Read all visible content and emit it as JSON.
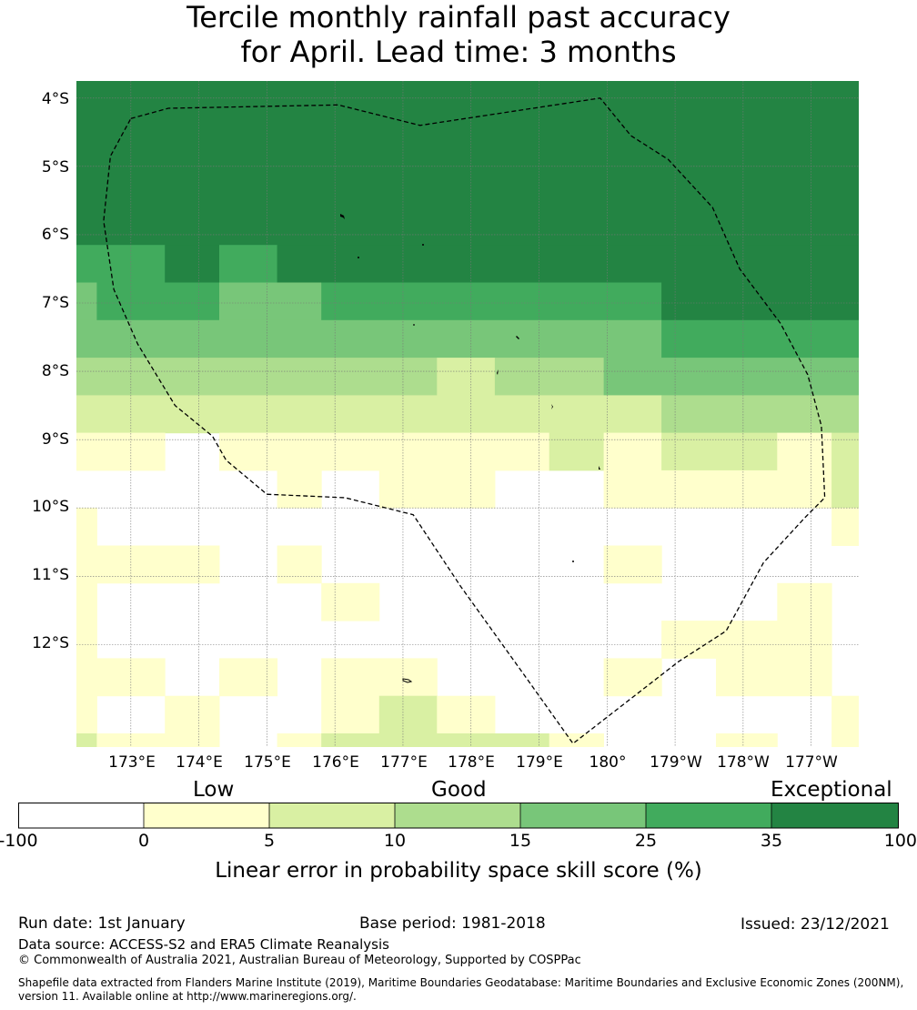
{
  "title": {
    "line1": "Tercile monthly rainfall past accuracy",
    "line2": "for April. Lead time: 3 months"
  },
  "map": {
    "lat_labels": [
      "4°S",
      "5°S",
      "6°S",
      "7°S",
      "8°S",
      "9°S",
      "10°S",
      "11°S",
      "12°S"
    ],
    "lon_labels": [
      "173°E",
      "174°E",
      "175°E",
      "176°E",
      "177°E",
      "178°E",
      "179°E",
      "180°",
      "179°W",
      "178°W",
      "177°W"
    ],
    "extent": {
      "lon_min": 172.2,
      "lon_max": 183.7,
      "lat_min": -13.5,
      "lat_max": -3.75
    },
    "grid_cell_size_deg": 0.5,
    "eez_boundary": [
      [
        173.0,
        -4.3
      ],
      [
        173.55,
        -4.15
      ],
      [
        176.05,
        -4.1
      ],
      [
        177.25,
        -4.4
      ],
      [
        179.9,
        -4.0
      ],
      [
        180.35,
        -4.55
      ],
      [
        180.9,
        -4.9
      ],
      [
        181.55,
        -5.6
      ],
      [
        181.95,
        -6.5
      ],
      [
        182.55,
        -7.3
      ],
      [
        182.95,
        -8.05
      ],
      [
        183.15,
        -8.8
      ],
      [
        183.2,
        -9.85
      ],
      [
        182.9,
        -10.15
      ],
      [
        182.3,
        -10.8
      ],
      [
        181.75,
        -11.8
      ],
      [
        181.05,
        -12.25
      ],
      [
        179.5,
        -13.45
      ],
      [
        178.75,
        -12.4
      ],
      [
        177.85,
        -11.15
      ],
      [
        177.15,
        -10.1
      ],
      [
        176.15,
        -9.85
      ],
      [
        175.0,
        -9.8
      ],
      [
        174.4,
        -9.3
      ],
      [
        174.2,
        -8.95
      ],
      [
        173.65,
        -8.5
      ],
      [
        173.1,
        -7.6
      ],
      [
        172.75,
        -6.8
      ],
      [
        172.6,
        -5.8
      ],
      [
        172.7,
        -4.85
      ],
      [
        173.0,
        -4.3
      ]
    ],
    "cells": [
      {
        "lat": -3.75,
        "lat2": -6.15,
        "lon": 172.2,
        "lon2": 183.7,
        "category": 6
      },
      {
        "lat": -6.15,
        "lat2": -6.7,
        "lon": 172.2,
        "lon2": 173.5,
        "category": 5
      },
      {
        "lat": -6.15,
        "lat2": -6.7,
        "lon": 173.5,
        "lon2": 174.3,
        "category": 6
      },
      {
        "lat": -6.15,
        "lat2": -6.7,
        "lon": 174.3,
        "lon2": 175.15,
        "category": 5
      },
      {
        "lat": -6.15,
        "lat2": -6.7,
        "lon": 175.15,
        "lon2": 183.7,
        "category": 6
      },
      {
        "lat": -6.7,
        "lat2": -7.25,
        "lon": 172.2,
        "lon2": 172.5,
        "category": 4
      },
      {
        "lat": -6.7,
        "lat2": -7.25,
        "lon": 172.5,
        "lon2": 174.3,
        "category": 5
      },
      {
        "lat": -6.7,
        "lat2": -7.25,
        "lon": 174.3,
        "lon2": 175.8,
        "category": 4
      },
      {
        "lat": -6.7,
        "lat2": -7.25,
        "lon": 175.8,
        "lon2": 180.8,
        "category": 5
      },
      {
        "lat": -6.7,
        "lat2": -7.25,
        "lon": 180.8,
        "lon2": 183.7,
        "category": 6
      },
      {
        "lat": -7.25,
        "lat2": -7.8,
        "lon": 172.2,
        "lon2": 180.8,
        "category": 4
      },
      {
        "lat": -7.25,
        "lat2": -7.8,
        "lon": 180.8,
        "lon2": 183.7,
        "category": 5
      },
      {
        "lat": -7.8,
        "lat2": -8.35,
        "lon": 172.2,
        "lon2": 177.5,
        "category": 3
      },
      {
        "lat": -7.8,
        "lat2": -8.35,
        "lon": 177.5,
        "lon2": 178.35,
        "category": 2
      },
      {
        "lat": -7.8,
        "lat2": -8.35,
        "lon": 178.35,
        "lon2": 179.95,
        "category": 3
      },
      {
        "lat": -7.8,
        "lat2": -8.35,
        "lon": 179.95,
        "lon2": 183.7,
        "category": 4
      },
      {
        "lat": -8.35,
        "lat2": -8.9,
        "lon": 172.2,
        "lon2": 180.8,
        "category": 2
      },
      {
        "lat": -8.35,
        "lat2": -8.9,
        "lon": 180.8,
        "lon2": 183.7,
        "category": 3
      },
      {
        "lat": -8.9,
        "lat2": -9.45,
        "lon": 172.2,
        "lon2": 173.5,
        "category": 1
      },
      {
        "lat": -8.9,
        "lat2": -9.45,
        "lon": 174.3,
        "lon2": 179.15,
        "category": 1
      },
      {
        "lat": -8.9,
        "lat2": -9.45,
        "lon": 179.15,
        "lon2": 179.95,
        "category": 2
      },
      {
        "lat": -8.9,
        "lat2": -9.45,
        "lon": 179.95,
        "lon2": 180.8,
        "category": 1
      },
      {
        "lat": -8.9,
        "lat2": -9.45,
        "lon": 180.8,
        "lon2": 182.5,
        "category": 2
      },
      {
        "lat": -8.9,
        "lat2": -9.45,
        "lon": 182.5,
        "lon2": 183.3,
        "category": 1
      },
      {
        "lat": -8.9,
        "lat2": -9.45,
        "lon": 183.3,
        "lon2": 183.7,
        "category": 2
      },
      {
        "lat": -9.45,
        "lat2": -10.0,
        "lon": 175.15,
        "lon2": 175.8,
        "category": 1
      },
      {
        "lat": -9.45,
        "lat2": -10.0,
        "lon": 176.65,
        "lon2": 178.35,
        "category": 1
      },
      {
        "lat": -9.45,
        "lat2": -10.0,
        "lon": 179.95,
        "lon2": 183.3,
        "category": 1
      },
      {
        "lat": -9.45,
        "lat2": -10.0,
        "lon": 183.3,
        "lon2": 183.7,
        "category": 2
      },
      {
        "lat": -10.0,
        "lat2": -10.55,
        "lon": 172.2,
        "lon2": 172.5,
        "category": 1
      },
      {
        "lat": -10.0,
        "lat2": -10.55,
        "lon": 183.3,
        "lon2": 183.7,
        "category": 1
      },
      {
        "lat": -10.55,
        "lat2": -11.1,
        "lon": 172.2,
        "lon2": 174.3,
        "category": 1
      },
      {
        "lat": -10.55,
        "lat2": -11.1,
        "lon": 175.15,
        "lon2": 175.8,
        "category": 1
      },
      {
        "lat": -10.55,
        "lat2": -11.1,
        "lon": 179.95,
        "lon2": 180.8,
        "category": 1
      },
      {
        "lat": -11.1,
        "lat2": -13.5,
        "lon": 172.2,
        "lon2": 172.5,
        "category": 1
      },
      {
        "lat": -11.1,
        "lat2": -11.65,
        "lon": 175.8,
        "lon2": 176.65,
        "category": 1
      },
      {
        "lat": -11.1,
        "lat2": -11.65,
        "lon": 182.5,
        "lon2": 183.3,
        "category": 1
      },
      {
        "lat": -11.65,
        "lat2": -12.2,
        "lon": 180.8,
        "lon2": 183.3,
        "category": 1
      },
      {
        "lat": -12.2,
        "lat2": -12.75,
        "lon": 172.5,
        "lon2": 173.5,
        "category": 1
      },
      {
        "lat": -12.2,
        "lat2": -12.75,
        "lon": 174.3,
        "lon2": 175.15,
        "category": 1
      },
      {
        "lat": -12.2,
        "lat2": -12.75,
        "lon": 175.8,
        "lon2": 177.5,
        "category": 1
      },
      {
        "lat": -12.2,
        "lat2": -12.75,
        "lon": 179.95,
        "lon2": 180.8,
        "category": 1
      },
      {
        "lat": -12.2,
        "lat2": -12.75,
        "lon": 181.6,
        "lon2": 183.3,
        "category": 1
      },
      {
        "lat": -12.75,
        "lat2": -13.3,
        "lon": 173.5,
        "lon2": 174.3,
        "category": 1
      },
      {
        "lat": -12.75,
        "lat2": -13.3,
        "lon": 175.8,
        "lon2": 176.65,
        "category": 1
      },
      {
        "lat": -12.75,
        "lat2": -13.3,
        "lon": 176.65,
        "lon2": 177.5,
        "category": 2
      },
      {
        "lat": -12.75,
        "lat2": -13.3,
        "lon": 177.5,
        "lon2": 178.35,
        "category": 1
      },
      {
        "lat": -12.75,
        "lat2": -13.3,
        "lon": 183.3,
        "lon2": 183.7,
        "category": 1
      },
      {
        "lat": -13.3,
        "lat2": -13.5,
        "lon": 172.2,
        "lon2": 172.5,
        "category": 2
      },
      {
        "lat": -13.3,
        "lat2": -13.5,
        "lon": 172.5,
        "lon2": 174.3,
        "category": 1
      },
      {
        "lat": -13.3,
        "lat2": -13.5,
        "lon": 175.15,
        "lon2": 175.8,
        "category": 1
      },
      {
        "lat": -13.3,
        "lat2": -13.5,
        "lon": 175.8,
        "lon2": 179.15,
        "category": 2
      },
      {
        "lat": -13.3,
        "lat2": -13.5,
        "lon": 179.15,
        "lon2": 179.95,
        "category": 1
      },
      {
        "lat": -13.3,
        "lat2": -13.5,
        "lon": 181.6,
        "lon2": 182.5,
        "category": 1
      },
      {
        "lat": -13.3,
        "lat2": -13.5,
        "lon": 183.3,
        "lon2": 183.7,
        "category": 1
      }
    ]
  },
  "colorbar": {
    "category_labels": {
      "low": "Low",
      "good": "Good",
      "exceptional": "Exceptional"
    },
    "bounds": [
      "-100",
      "0",
      "5",
      "10",
      "15",
      "25",
      "35",
      "100"
    ],
    "colors": [
      "#ffffff",
      "#ffffcc",
      "#d9f0a3",
      "#addd8e",
      "#78c679",
      "#41ab5d",
      "#238443"
    ],
    "label": "Linear error in probability space skill score (%)"
  },
  "footer": {
    "run_date": "Run date: 1st January",
    "base_period": "Base period: 1981-2018",
    "issued": "Issued: 23/12/2021",
    "data_source": "Data source: ACCESS-S2 and ERA5 Climate Reanalysis",
    "copyright": "© Commonwealth of Australia 2021, Australian Bureau of Meteorology, Supported by COSPPac",
    "shapefile_line1": "Shapefile data extracted from Flanders Marine Institute (2019), Maritime Boundaries Geodatabase: Maritime Boundaries and Exclusive Economic Zones (200NM),",
    "shapefile_line2": "version 11. Available online at http://www.marineregions.org/."
  }
}
